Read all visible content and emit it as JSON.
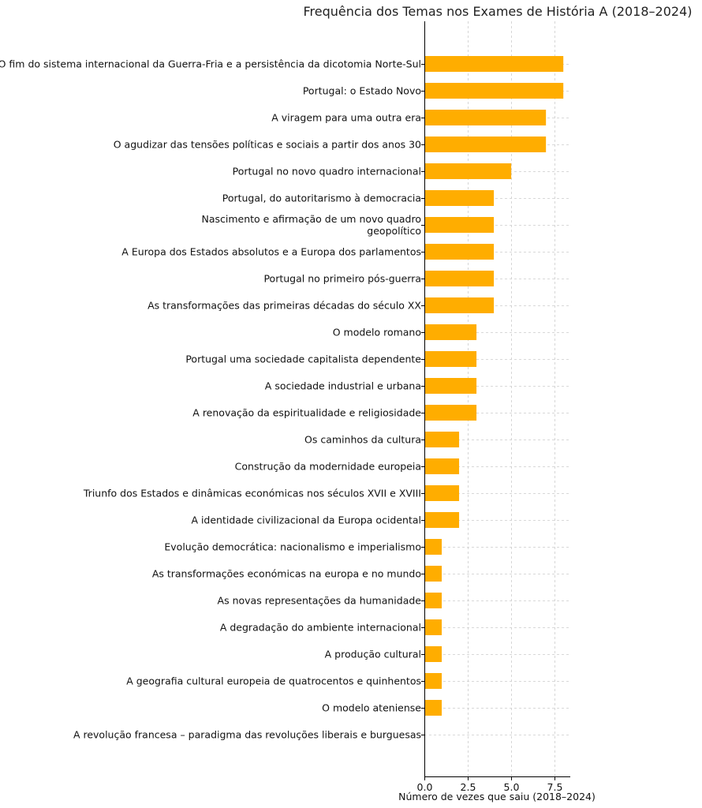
{
  "chart_data": {
    "type": "bar",
    "orientation": "horizontal",
    "title": "Frequência dos Temas nos Exames de História A (2018–2024)",
    "xlabel": "Número de vezes que saiu (2018–2024)",
    "ylabel": "",
    "xlim": [
      0,
      8.4
    ],
    "xticks": [
      0,
      2.5,
      5,
      7.5
    ],
    "xtick_labels": [
      "0.0",
      "2.5",
      "5.0",
      "7.5"
    ],
    "grid": true,
    "bar_color": "#ffad00",
    "categories": [
      "O fim do sistema internacional da Guerra-Fria e a persistência da dicotomia Norte-Sul",
      "Portugal: o Estado Novo",
      "A viragem para uma outra era",
      "O agudizar das tensões políticas e sociais a partir dos anos 30",
      "Portugal no novo quadro internacional",
      "Portugal, do autoritarismo à democracia",
      "Nascimento e afirmação de um novo quadro\ngeopolítico",
      "A Europa dos Estados absolutos e a Europa dos parlamentos",
      "Portugal no primeiro pós-guerra",
      "As transformações das primeiras décadas do século XX",
      "O modelo romano",
      "Portugal uma sociedade capitalista dependente",
      "A sociedade industrial e urbana",
      "A renovação da espiritualidade e religiosidade",
      "Os caminhos da cultura",
      "Construção da modernidade europeia",
      "Triunfo dos Estados e dinâmicas económicas nos séculos XVII e XVIII",
      "A identidade civilizacional da Europa ocidental",
      "Evolução democrática: nacionalismo e imperialismo",
      "As transformações económicas na europa e no mundo",
      "As novas representações da humanidade",
      "A degradação do ambiente internacional",
      "A produção cultural",
      "A geografia cultural europeia de quatrocentos e quinhentos",
      "O modelo ateniense",
      "A revolução francesa – paradigma das revoluções liberais e burguesas"
    ],
    "values": [
      8,
      8,
      7,
      7,
      5,
      4,
      4,
      4,
      4,
      4,
      3,
      3,
      3,
      3,
      2,
      2,
      2,
      2,
      1,
      1,
      1,
      1,
      1,
      1,
      1,
      0
    ]
  }
}
